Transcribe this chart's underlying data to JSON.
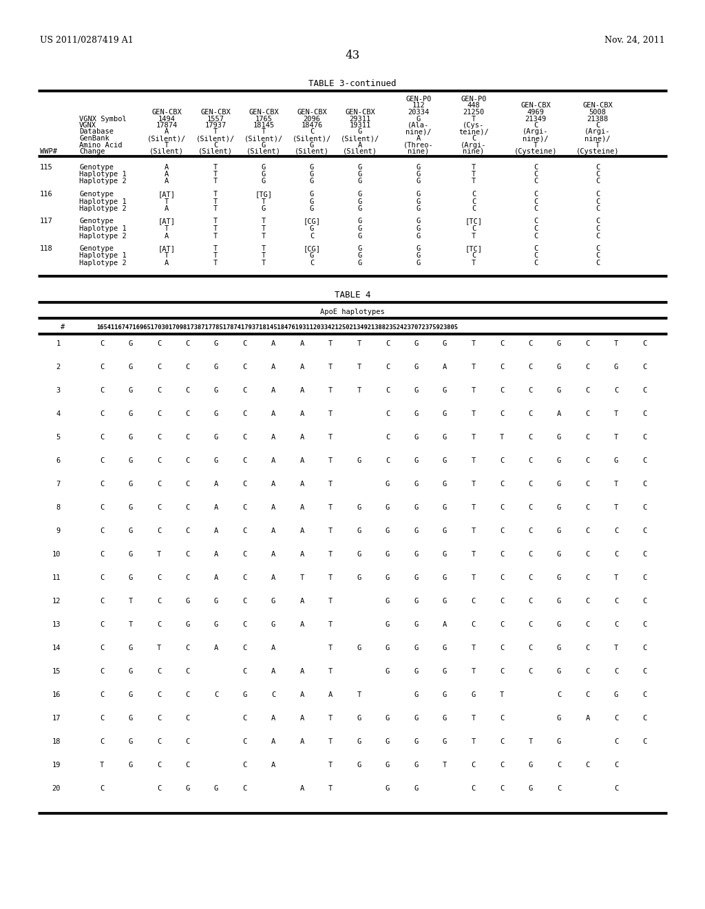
{
  "header_left": "US 2011/0287419 A1",
  "header_right": "Nov. 24, 2011",
  "page_number": "43",
  "table3_title": "TABLE 3-continued",
  "table4_title": "TABLE 4",
  "table4_subtitle": "ApoE haplotypes",
  "table4_header_num": "1654116747169651703017098173871778517874179371814518476193112033421250213492138823524237072375923805",
  "table3_col_headers": [
    [
      "",
      "",
      "",
      "",
      "",
      "",
      "GEN-P0",
      "GEN-P0",
      "",
      ""
    ],
    [
      "",
      "",
      "",
      "",
      "",
      "",
      "112",
      "448",
      "GEN-CBX",
      "GEN-CBX"
    ],
    [
      "GEN-CBX",
      "GEN-CBX",
      "GEN-CBX",
      "GEN-CBX",
      "GEN-CBX",
      "20334",
      "21250",
      "4969",
      "5008"
    ],
    [
      "VGNX Symbol",
      "1494",
      "1557",
      "1765",
      "2096",
      "29311",
      "G",
      "T",
      "21349",
      "21388"
    ],
    [
      "VGNX",
      "17874",
      "17937",
      "18145",
      "18476",
      "19311",
      "(Ala-",
      "(Cys-",
      "C",
      "C"
    ],
    [
      "Database",
      "A",
      "T",
      "T",
      "C",
      "G",
      "nine)/",
      "teine)/",
      "(Argi-",
      "(Argi-"
    ],
    [
      "GenBank",
      "(Silent)/",
      "(Silent)/",
      "(Silent)/",
      "(Silent)/",
      "(Silent)/",
      "A",
      "C",
      "nine)/",
      "nine)/"
    ],
    [
      "Amino Acid",
      "T",
      "C",
      "G",
      "G",
      "A",
      "(Threo-",
      "(Argi-",
      "T",
      "T"
    ],
    [
      "Change",
      "(Silent)",
      "(Silent)",
      "(Silent)",
      "(Silent)",
      "(Silent)",
      "nine)",
      "nine)",
      "(Cysteine)",
      "(Cysteine)"
    ]
  ],
  "table3_data": [
    {
      "wwp": "115",
      "rows": [
        [
          "Genotype",
          "A",
          "T",
          "G",
          "G",
          "G",
          "G",
          "T",
          "C",
          "C"
        ],
        [
          "Haplotype 1",
          "A",
          "T",
          "G",
          "G",
          "G",
          "G",
          "T",
          "C",
          "C"
        ],
        [
          "Haplotype 2",
          "A",
          "T",
          "G",
          "G",
          "G",
          "G",
          "T",
          "C",
          "C"
        ]
      ]
    },
    {
      "wwp": "116",
      "rows": [
        [
          "Genotype",
          "[AT]",
          "T",
          "[TG]",
          "G",
          "G",
          "G",
          "C",
          "C",
          "C"
        ],
        [
          "Haplotype 1",
          "T",
          "T",
          "T",
          "G",
          "G",
          "G",
          "C",
          "C",
          "C"
        ],
        [
          "Haplotype 2",
          "A",
          "T",
          "G",
          "G",
          "G",
          "G",
          "C",
          "C",
          "C"
        ]
      ]
    },
    {
      "wwp": "117",
      "rows": [
        [
          "Genotype",
          "[AT]",
          "T",
          "T",
          "[CG]",
          "G",
          "G",
          "[TC]",
          "C",
          "C"
        ],
        [
          "Haplotype 1",
          "T",
          "T",
          "T",
          "G",
          "G",
          "G",
          "C",
          "C",
          "C"
        ],
        [
          "Haplotype 2",
          "A",
          "T",
          "T",
          "C",
          "G",
          "G",
          "T",
          "C",
          "C"
        ]
      ]
    },
    {
      "wwp": "118",
      "rows": [
        [
          "Genotype",
          "[AT]",
          "T",
          "T",
          "[CG]",
          "G",
          "G",
          "[TC]",
          "C",
          "C"
        ],
        [
          "Haplotype 1",
          "T",
          "T",
          "T",
          "G",
          "G",
          "G",
          "C",
          "C",
          "C"
        ],
        [
          "Haplotype 2",
          "A",
          "T",
          "T",
          "C",
          "G",
          "G",
          "T",
          "C",
          "C"
        ]
      ]
    }
  ],
  "table4_data": [
    [
      "1",
      "C",
      "G",
      "C",
      "C",
      "G",
      "C",
      "A",
      "A",
      "T",
      "T",
      "C",
      "G",
      "G",
      "T",
      "C",
      "C",
      "G",
      "C",
      "T",
      "C"
    ],
    [
      "2",
      "C",
      "G",
      "C",
      "C",
      "G",
      "C",
      "A",
      "A",
      "T",
      "T",
      "C",
      "G",
      "A",
      "T",
      "C",
      "C",
      "G",
      "C",
      "G",
      "C"
    ],
    [
      "3",
      "C",
      "G",
      "C",
      "C",
      "G",
      "C",
      "A",
      "A",
      "T",
      "T",
      "C",
      "G",
      "G",
      "T",
      "C",
      "C",
      "G",
      "C",
      "C",
      "C"
    ],
    [
      "4",
      "C",
      "G",
      "C",
      "C",
      "G",
      "C",
      "A",
      "A",
      "T",
      " ",
      "C",
      "G",
      "G",
      "T",
      "C",
      "C",
      "A",
      "C",
      "T",
      "C"
    ],
    [
      "5",
      "C",
      "G",
      "C",
      "C",
      "G",
      "C",
      "A",
      "A",
      "T",
      " ",
      "C",
      "G",
      "G",
      "T",
      "T",
      "C",
      "G",
      "C",
      "T",
      "C"
    ],
    [
      "6",
      "C",
      "G",
      "C",
      "C",
      "G",
      "C",
      "A",
      "A",
      "T",
      "G",
      "C",
      "G",
      "G",
      "T",
      "C",
      "C",
      "G",
      "C",
      "G",
      "C"
    ],
    [
      "7",
      "C",
      "G",
      "C",
      "C",
      "A",
      "C",
      "A",
      "A",
      "T",
      " ",
      "G",
      "G",
      "G",
      "T",
      "C",
      "C",
      "G",
      "C",
      "T",
      "C"
    ],
    [
      "8",
      "C",
      "G",
      "C",
      "C",
      "A",
      "C",
      "A",
      "A",
      "T",
      "G",
      "G",
      "G",
      "G",
      "T",
      "C",
      "C",
      "G",
      "C",
      "T",
      "C"
    ],
    [
      "9",
      "C",
      "G",
      "C",
      "C",
      "A",
      "C",
      "A",
      "A",
      "T",
      "G",
      "G",
      "G",
      "G",
      "T",
      "C",
      "C",
      "G",
      "C",
      "C",
      "C"
    ],
    [
      "10",
      "C",
      "G",
      "T",
      "C",
      "A",
      "C",
      "A",
      "A",
      "T",
      "G",
      "G",
      "G",
      "G",
      "T",
      "C",
      "C",
      "G",
      "C",
      "C",
      "C"
    ],
    [
      "11",
      "C",
      "G",
      "C",
      "C",
      "A",
      "C",
      "A",
      "T",
      "T",
      "G",
      "G",
      "G",
      "G",
      "T",
      "C",
      "C",
      "G",
      "C",
      "T",
      "C"
    ],
    [
      "12",
      "C",
      "T",
      "C",
      "G",
      "G",
      "C",
      "G",
      "A",
      "T",
      " ",
      "G",
      "G",
      "G",
      "C",
      "C",
      "C",
      "G",
      "C",
      "C",
      "C"
    ],
    [
      "13",
      "C",
      "T",
      "C",
      "G",
      "G",
      "C",
      "G",
      "A",
      "T",
      " ",
      "G",
      "G",
      "A",
      "C",
      "C",
      "C",
      "G",
      "C",
      "C",
      "C"
    ],
    [
      "14",
      "C",
      "G",
      "T",
      "C",
      "A",
      "C",
      "A",
      " ",
      "T",
      "G",
      "G",
      "G",
      "G",
      "T",
      "C",
      "C",
      "G",
      "C",
      "T",
      "C"
    ],
    [
      "15",
      "C",
      "G",
      "C",
      "C",
      " ",
      "C",
      "A",
      "A",
      "T",
      " ",
      "G",
      "G",
      "G",
      "T",
      "C",
      "C",
      "G",
      "C",
      "C",
      "C"
    ],
    [
      "16",
      "C",
      "G",
      "C",
      "C",
      "C",
      "G",
      "C",
      "A",
      "A",
      "T",
      " ",
      "G",
      "G",
      "G",
      "T",
      " ",
      "C",
      "C",
      "G",
      "C",
      " ",
      "C"
    ],
    [
      "17",
      "C",
      "G",
      "C",
      "C",
      " ",
      "C",
      "A",
      "A",
      "T",
      "G",
      "G",
      "G",
      "G",
      "T",
      "C",
      " ",
      "G",
      "A",
      "C",
      "C"
    ],
    [
      "18",
      "C",
      "G",
      "C",
      "C",
      " ",
      "C",
      "A",
      "A",
      "T",
      "G",
      "G",
      "G",
      "G",
      "T",
      "C",
      "T",
      "G",
      " ",
      "C",
      "C"
    ],
    [
      "19",
      "T",
      "G",
      "C",
      "C",
      " ",
      "C",
      "A",
      " ",
      "T",
      "G",
      "G",
      "G",
      "T",
      "C",
      "C",
      "G",
      "C",
      "C",
      "C"
    ],
    [
      "20",
      "C",
      " ",
      "C",
      "G",
      "G",
      "C",
      " ",
      "A",
      "T",
      " ",
      "G",
      "G",
      " ",
      "C",
      "C",
      "G",
      "C",
      " ",
      "C"
    ]
  ],
  "lw_thick": 2.0,
  "lw_thin": 0.8,
  "fs_mono": 7.5,
  "fs_header": 9.0,
  "fs_page_num": 12
}
